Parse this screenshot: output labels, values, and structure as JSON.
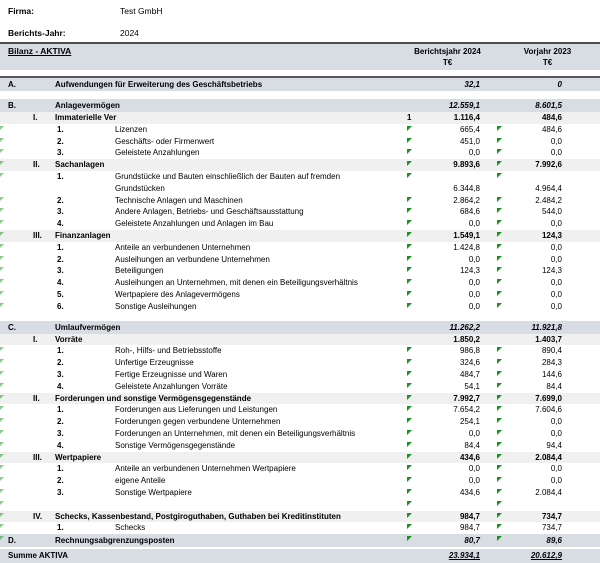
{
  "meta": {
    "firma_label": "Firma:",
    "firma_value": "Test GmbH",
    "jahr_label": "Berichts-Jahr:",
    "jahr_value": "2024"
  },
  "header": {
    "title": "Bilanz - AKTIVA",
    "col1_line1": "Berichtsjahr 2024",
    "col1_unit": "T€",
    "col2_line1": "Vorjahr 2023",
    "col2_unit": "T€"
  },
  "colors": {
    "band_main": "#d8dde4",
    "band_sub": "#f0f0f0",
    "comment_marker_green": "#17941f",
    "border_dark": "#4d4d4d"
  },
  "rows": [
    {
      "t": "main",
      "a": "A.",
      "label": "Aufwendungen für Erweiterung des Geschäftsbetriebs",
      "v1": "32,1",
      "v2": "0",
      "bt": true
    },
    {
      "t": "gap"
    },
    {
      "t": "main",
      "a": "B.",
      "label": "Anlagevermögen",
      "v1": "12.559,1",
      "v2": "8.601,5"
    },
    {
      "t": "sub",
      "a": "I.",
      "label": "Immaterielle Ver",
      "note": "1",
      "v1": "1.116,4",
      "v2": "484,6"
    },
    {
      "t": "item",
      "n": "1.",
      "label": "Lizenzen",
      "v1": "665,4",
      "v2": "484,6",
      "m": true
    },
    {
      "t": "item",
      "n": "2.",
      "label": "Geschäfts- oder Firmenwert",
      "v1": "451,0",
      "v2": "0,0",
      "m": true
    },
    {
      "t": "item",
      "n": "3.",
      "label": "Geleistete Anzahlungen",
      "v1": "0,0",
      "v2": "0,0",
      "m": true
    },
    {
      "t": "sub",
      "a": "II.",
      "label": "Sachanlagen",
      "v1": "9.893,6",
      "v2": "7.992,6",
      "m": true
    },
    {
      "t": "item",
      "n": "1.",
      "label": "Grundstücke und Bauten einschließlich der Bauten auf fremden",
      "v1": "",
      "v2": "",
      "m": true
    },
    {
      "t": "cont",
      "label": "Grundstücken",
      "v1": "6.344,8",
      "v2": "4.964,4"
    },
    {
      "t": "item",
      "n": "2.",
      "label": "Technische Anlagen und Maschinen",
      "v1": "2.864,2",
      "v2": "2.484,2",
      "m": true
    },
    {
      "t": "item",
      "n": "3.",
      "label": "Andere Anlagen, Betriebs- und Geschäftsausstattung",
      "v1": "684,6",
      "v2": "544,0",
      "m": true
    },
    {
      "t": "item",
      "n": "4.",
      "label": "Geleistete Anzahlungen und Anlagen im Bau",
      "v1": "0,0",
      "v2": "0,0",
      "m": true
    },
    {
      "t": "sub",
      "a": "III.",
      "label": "Finanzanlagen",
      "v1": "1.549,1",
      "v2": "124,3",
      "m": true
    },
    {
      "t": "item",
      "n": "1.",
      "label": "Anteile an verbundenen Unternehmen",
      "v1": "1.424,8",
      "v2": "0,0",
      "m": true
    },
    {
      "t": "item",
      "n": "2.",
      "label": "Ausleihungen an verbundene Unternehmen",
      "v1": "0,0",
      "v2": "0,0",
      "m": true
    },
    {
      "t": "item",
      "n": "3.",
      "label": "Beteiligungen",
      "v1": "124,3",
      "v2": "124,3",
      "m": true
    },
    {
      "t": "item",
      "n": "4.",
      "label": "Ausleihungen an Unternehmen, mit denen ein Beteiligungsverhältnis",
      "v1": "0,0",
      "v2": "0,0",
      "m": true
    },
    {
      "t": "item",
      "n": "5.",
      "label": "Wertpapiere des Anlagevermögens",
      "v1": "0,0",
      "v2": "0,0",
      "m": true
    },
    {
      "t": "item",
      "n": "6.",
      "label": "Sonstige Ausleihungen",
      "v1": "0,0",
      "v2": "0,0",
      "m": true
    },
    {
      "t": "gap"
    },
    {
      "t": "main",
      "a": "C.",
      "label": "Umlaufvermögen",
      "v1": "11.262,2",
      "v2": "11.921,8"
    },
    {
      "t": "sub",
      "a": "I.",
      "label": "Vorräte",
      "v1": "1.850,2",
      "v2": "1.403,7"
    },
    {
      "t": "item",
      "n": "1.",
      "label": "Roh-, Hilfs- und Betriebsstoffe",
      "v1": "986,8",
      "v2": "890,4",
      "m": true
    },
    {
      "t": "item",
      "n": "2.",
      "label": "Unfertige Erzeugnisse",
      "v1": "324,6",
      "v2": "284,3",
      "m": true
    },
    {
      "t": "item",
      "n": "3.",
      "label": "Fertige Erzeugnisse und Waren",
      "v1": "484,7",
      "v2": "144,6",
      "m": true
    },
    {
      "t": "item",
      "n": "4.",
      "label": "Geleistete Anzahlungen Vorräte",
      "v1": "54,1",
      "v2": "84,4",
      "m": true
    },
    {
      "t": "sub",
      "a": "II.",
      "label": "Forderungen und sonstige Vermögensgegenstände",
      "v1": "7.992,7",
      "v2": "7.699,0",
      "m": true
    },
    {
      "t": "item",
      "n": "1.",
      "label": "Forderungen aus Lieferungen und Leistungen",
      "v1": "7.654,2",
      "v2": "7.604,6",
      "m": true
    },
    {
      "t": "item",
      "n": "2.",
      "label": "Forderungen gegen verbundene Unternehmen",
      "v1": "254,1",
      "v2": "0,0",
      "m": true
    },
    {
      "t": "item",
      "n": "3.",
      "label": "Forderungen an Unternehmen, mit denen ein Beteiligungsverhältnis",
      "v1": "0,0",
      "v2": "0,0",
      "m": true
    },
    {
      "t": "item",
      "n": "4.",
      "label": "Sonstige Vermögensgegenstände",
      "v1": "84,4",
      "v2": "94,4",
      "m": true
    },
    {
      "t": "sub",
      "a": "III.",
      "label": "Wertpapiere",
      "v1": "434,6",
      "v2": "2.084,4",
      "m": true
    },
    {
      "t": "item",
      "n": "1.",
      "label": "Anteile an verbundenen Unternehmen Wertpapiere",
      "v1": "0,0",
      "v2": "0,0",
      "m": true
    },
    {
      "t": "item",
      "n": "2.",
      "label": "eigene Anteile",
      "v1": "0,0",
      "v2": "0,0",
      "m": true
    },
    {
      "t": "item",
      "n": "3.",
      "label": "Sonstige Wertpapiere",
      "v1": "434,6",
      "v2": "2.084,4",
      "m": true
    },
    {
      "t": "item",
      "n": "",
      "label": "",
      "v1": "",
      "v2": "",
      "m": true
    },
    {
      "t": "sub",
      "a": "IV.",
      "label": "Schecks, Kassenbestand, Postgiroguthaben, Guthaben bei Kreditinstituten",
      "v1": "984,7",
      "v2": "734,7",
      "m": true
    },
    {
      "t": "item",
      "n": "1.",
      "label": "Schecks",
      "v1": "984,7",
      "v2": "734,7",
      "m": true
    },
    {
      "t": "main",
      "a": "D.",
      "label": "Rechnungsabgrenzungsposten",
      "v1": "80,7",
      "v2": "89,6",
      "m": true
    },
    {
      "t": "total",
      "label": "Summe AKTIVA",
      "v1": "23.934,1",
      "v2": "20.612,9"
    }
  ]
}
